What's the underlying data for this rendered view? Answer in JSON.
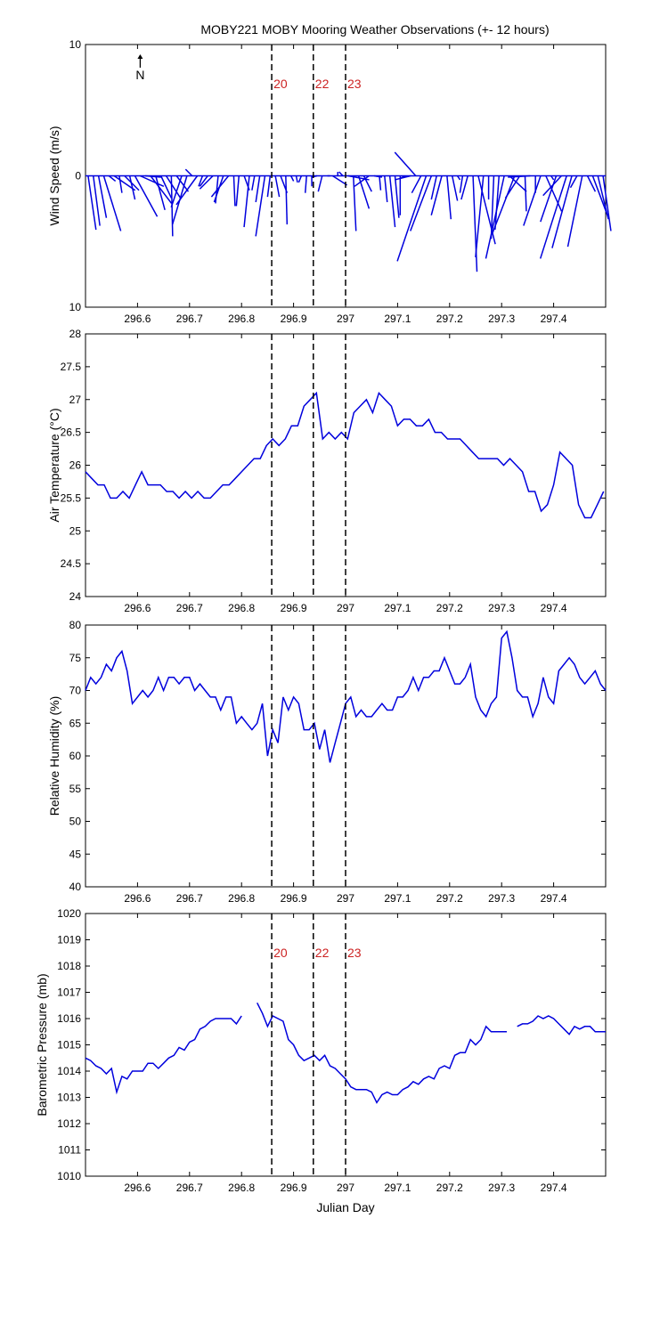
{
  "figure": {
    "title": "MOBY221 MOBY Mooring Weather Observations (+- 12 hours)",
    "xlabel": "Julian Day",
    "x_range": [
      296.5,
      297.5
    ],
    "x_ticks": [
      296.6,
      296.7,
      296.8,
      296.9,
      297,
      297.1,
      297.2,
      297.3,
      297.4
    ],
    "markers": [
      {
        "x": 296.858,
        "label": "20"
      },
      {
        "x": 296.938,
        "label": "22"
      },
      {
        "x": 297.0,
        "label": "23"
      }
    ],
    "colors": {
      "series": "#0000dd",
      "marker_label": "#cc2222",
      "axis": "#000000"
    }
  },
  "chart_data": [
    {
      "type": "quiver",
      "ylabel": "Wind Speed (m/s)",
      "ylim": [
        -10,
        10
      ],
      "y_tick_labels": [
        "10",
        "0",
        "10"
      ],
      "north_label": "N",
      "show_marker_labels": true,
      "x": [
        296.505,
        296.515,
        296.525,
        296.535,
        296.545,
        296.555,
        296.565,
        296.575,
        296.585,
        296.595,
        296.605,
        296.615,
        296.625,
        296.635,
        296.645,
        296.655,
        296.665,
        296.675,
        296.685,
        296.695,
        296.705,
        296.715,
        296.725,
        296.735,
        296.745,
        296.755,
        296.765,
        296.775,
        296.785,
        296.795,
        296.805,
        296.815,
        296.825,
        296.835,
        296.845,
        296.855,
        296.865,
        296.875,
        296.885,
        296.895,
        296.905,
        296.915,
        296.925,
        296.935,
        296.945,
        296.955,
        296.965,
        296.975,
        296.985,
        296.995,
        297.005,
        297.015,
        297.025,
        297.035,
        297.045,
        297.055,
        297.065,
        297.075,
        297.085,
        297.095,
        297.105,
        297.115,
        297.125,
        297.135,
        297.145,
        297.155,
        297.165,
        297.175,
        297.185,
        297.195,
        297.205,
        297.215,
        297.225,
        297.235,
        297.245,
        297.255,
        297.265,
        297.275,
        297.285,
        297.295,
        297.305,
        297.315,
        297.325,
        297.335,
        297.345,
        297.355,
        297.365,
        297.375,
        297.385,
        297.395,
        297.405,
        297.415,
        297.425,
        297.435,
        297.445,
        297.455,
        297.465,
        297.475,
        297.485,
        297.495
      ],
      "u": [
        0.6,
        0.5,
        0.6,
        1.3,
        0.5,
        1.6,
        0.2,
        1.1,
        0.4,
        1.7,
        1.8,
        1.2,
        1.6,
        0.7,
        0.8,
        1.1,
        0.1,
        0.9,
        -0.8,
        -1.1,
        -0.5,
        -1.6,
        -0.3,
        -0.6,
        -1.0,
        -0.2,
        -0.7,
        -1.3,
        0.1,
        -0.2,
        0.4,
        -0.4,
        -0.2,
        -0.3,
        -0.7,
        -0.2,
        0.3,
        0.5,
        0.1,
        0.2,
        0.1,
        -0.2,
        -0.1,
        0.0,
        -0.4,
        -0.3,
        0.2,
        1.1,
        0.0,
        -0.3,
        1.6,
        0.2,
        0.8,
        0.6,
        -1.1,
        0.6,
        0.1,
        0.2,
        0.4,
        0.3,
        0.0,
        -0.4,
        -1.2,
        -1.6,
        -0.7,
        -2.2,
        -1.6,
        -0.4,
        -0.8,
        0.3,
        0.4,
        0.2,
        -0.2,
        -0.5,
        0.3,
        1.3,
        -0.6,
        0.0,
        -0.2,
        -0.3,
        -1.4,
        1.3,
        -1.7,
        -1.1,
        0.1,
        -1.7,
        0.0,
        -1.3,
        1.2,
        0.2,
        -1.2,
        -1.4,
        -2.0,
        -1.5,
        -0.5,
        -1.1,
        0.6,
        1.2,
        0.8,
        0.6
      ],
      "v": [
        -4.1,
        -3.8,
        -3.2,
        -4.2,
        -0.4,
        -1.1,
        -1.3,
        -1.1,
        -1.8,
        -3.1,
        -0.8,
        -0.1,
        -2.1,
        -2.6,
        -1.7,
        -1.7,
        -4.6,
        -1.2,
        -2.4,
        -3.7,
        0.5,
        -2.2,
        -0.8,
        -0.8,
        -1.0,
        -2.1,
        -2.0,
        -1.6,
        -2.3,
        -2.3,
        -1.1,
        -3.9,
        -1.1,
        -2.0,
        -4.6,
        -1.6,
        -1.6,
        -1.3,
        -3.7,
        -0.4,
        -0.5,
        -0.5,
        -1.3,
        -0.8,
        -0.1,
        -1.2,
        0.0,
        -0.7,
        0.3,
        0.3,
        -0.3,
        -4.2,
        -2.5,
        -1.2,
        -0.8,
        -0.1,
        -1.1,
        -2.0,
        -3.9,
        -3.2,
        -3.0,
        -0.2,
        -0.3,
        1.8,
        -1.3,
        -6.5,
        -4.2,
        -1.8,
        -3.0,
        -3.3,
        -1.9,
        -0.3,
        -1.3,
        -1.8,
        -7.3,
        -5.2,
        -6.2,
        -1.8,
        -4.8,
        -4.1,
        -6.3,
        -1.2,
        -4.4,
        -1.7,
        -2.7,
        -0.1,
        -1.3,
        -3.8,
        -2.7,
        -0.3,
        -3.5,
        -1.5,
        -6.3,
        -5.5,
        -0.9,
        -5.4,
        -1.2,
        -3.2,
        -3.3,
        -4.2
      ]
    },
    {
      "type": "line",
      "ylabel": "Air Temperature (°C)",
      "ylim": [
        24,
        28
      ],
      "y_ticks": [
        24,
        24.5,
        25,
        25.5,
        26,
        26.5,
        27,
        27.5,
        28
      ],
      "y_tick_labels": [
        "24",
        "24.5",
        "25",
        "25.5",
        "26",
        "26.5",
        "27",
        "27.5",
        "28"
      ],
      "show_marker_labels": false,
      "x": [
        296.5,
        296.512,
        296.524,
        296.536,
        296.548,
        296.56,
        296.572,
        296.584,
        296.596,
        296.608,
        296.62,
        296.632,
        296.644,
        296.656,
        296.668,
        296.68,
        296.692,
        296.704,
        296.716,
        296.728,
        296.74,
        296.752,
        296.764,
        296.776,
        296.788,
        296.8,
        296.812,
        296.824,
        296.836,
        296.848,
        296.86,
        296.872,
        296.884,
        296.896,
        296.908,
        296.92,
        296.932,
        296.944,
        296.956,
        296.968,
        296.98,
        296.992,
        297.004,
        297.016,
        297.028,
        297.04,
        297.052,
        297.064,
        297.076,
        297.088,
        297.1,
        297.112,
        297.124,
        297.136,
        297.148,
        297.16,
        297.172,
        297.184,
        297.196,
        297.208,
        297.22,
        297.232,
        297.244,
        297.256,
        297.268,
        297.28,
        297.292,
        297.304,
        297.316,
        297.328,
        297.34,
        297.352,
        297.364,
        297.376,
        297.388,
        297.4,
        297.412,
        297.424,
        297.436,
        297.448,
        297.46,
        297.472,
        297.484,
        297.496
      ],
      "y": [
        25.9,
        25.8,
        25.7,
        25.7,
        25.5,
        25.5,
        25.6,
        25.5,
        25.7,
        25.9,
        25.7,
        25.7,
        25.7,
        25.6,
        25.6,
        25.5,
        25.6,
        25.5,
        25.6,
        25.5,
        25.5,
        25.6,
        25.7,
        25.7,
        25.8,
        25.9,
        26.0,
        26.1,
        26.1,
        26.3,
        26.4,
        26.3,
        26.4,
        26.6,
        26.6,
        26.9,
        27.0,
        27.1,
        26.4,
        26.5,
        26.4,
        26.5,
        26.4,
        26.8,
        26.9,
        27.0,
        26.8,
        27.1,
        27.0,
        26.9,
        26.6,
        26.7,
        26.7,
        26.6,
        26.6,
        26.7,
        26.5,
        26.5,
        26.4,
        26.4,
        26.4,
        26.3,
        26.2,
        26.1,
        26.1,
        26.1,
        26.1,
        26.0,
        26.1,
        26.0,
        25.9,
        25.6,
        25.6,
        25.3,
        25.4,
        25.7,
        26.2,
        26.1,
        26.0,
        25.4,
        25.2,
        25.2,
        25.4,
        25.6
      ]
    },
    {
      "type": "line",
      "ylabel": "Relative Humidity (%)",
      "ylim": [
        40,
        80
      ],
      "y_ticks": [
        40,
        45,
        50,
        55,
        60,
        65,
        70,
        75,
        80
      ],
      "y_tick_labels": [
        "40",
        "45",
        "50",
        "55",
        "60",
        "65",
        "70",
        "75",
        "80"
      ],
      "show_marker_labels": false,
      "x": [
        296.5,
        296.51,
        296.52,
        296.53,
        296.54,
        296.55,
        296.56,
        296.57,
        296.58,
        296.59,
        296.6,
        296.61,
        296.62,
        296.63,
        296.64,
        296.65,
        296.66,
        296.67,
        296.68,
        296.69,
        296.7,
        296.71,
        296.72,
        296.73,
        296.74,
        296.75,
        296.76,
        296.77,
        296.78,
        296.79,
        296.8,
        296.81,
        296.82,
        296.83,
        296.84,
        296.85,
        296.86,
        296.87,
        296.88,
        296.89,
        296.9,
        296.91,
        296.92,
        296.93,
        296.94,
        296.95,
        296.96,
        296.97,
        296.98,
        296.99,
        297.0,
        297.01,
        297.02,
        297.03,
        297.04,
        297.05,
        297.06,
        297.07,
        297.08,
        297.09,
        297.1,
        297.11,
        297.12,
        297.13,
        297.14,
        297.15,
        297.16,
        297.17,
        297.18,
        297.19,
        297.2,
        297.21,
        297.22,
        297.23,
        297.24,
        297.25,
        297.26,
        297.27,
        297.28,
        297.29,
        297.3,
        297.31,
        297.32,
        297.33,
        297.34,
        297.35,
        297.36,
        297.37,
        297.38,
        297.39,
        297.4,
        297.41,
        297.42,
        297.43,
        297.44,
        297.45,
        297.46,
        297.47,
        297.48,
        297.49,
        297.5
      ],
      "y": [
        70,
        72,
        71,
        72,
        74,
        73,
        75,
        76,
        73,
        68,
        69,
        70,
        69,
        70,
        72,
        70,
        72,
        72,
        71,
        72,
        72,
        70,
        71,
        70,
        69,
        69,
        67,
        69,
        69,
        65,
        66,
        65,
        64,
        65,
        68,
        60,
        64,
        62,
        69,
        67,
        69,
        68,
        64,
        64,
        65,
        61,
        64,
        59,
        62,
        65,
        68,
        69,
        66,
        67,
        66,
        66,
        67,
        68,
        67,
        67,
        69,
        69,
        70,
        72,
        70,
        72,
        72,
        73,
        73,
        75,
        73,
        71,
        71,
        72,
        74,
        69,
        67,
        66,
        68,
        69,
        78,
        79,
        75,
        70,
        69,
        69,
        66,
        68,
        72,
        69,
        68,
        73,
        74,
        75,
        74,
        72,
        71,
        72,
        73,
        71,
        70
      ]
    },
    {
      "type": "line",
      "ylabel": "Barometric Pressure (mb)",
      "ylim": [
        1010,
        1020
      ],
      "y_ticks": [
        1010,
        1011,
        1012,
        1013,
        1014,
        1015,
        1016,
        1017,
        1018,
        1019,
        1020
      ],
      "y_tick_labels": [
        "1010",
        "1011",
        "1012",
        "1013",
        "1014",
        "1015",
        "1016",
        "1017",
        "1018",
        "1019",
        "1020"
      ],
      "show_marker_labels": true,
      "segments": [
        {
          "x": [
            296.5,
            296.51,
            296.52,
            296.53,
            296.54,
            296.55,
            296.56,
            296.57,
            296.58,
            296.59,
            296.6,
            296.61,
            296.62,
            296.63,
            296.64,
            296.65,
            296.66,
            296.67,
            296.68,
            296.69,
            296.7,
            296.71,
            296.72,
            296.73,
            296.74,
            296.75,
            296.76,
            296.77,
            296.78,
            296.79,
            296.8
          ],
          "y": [
            1014.5,
            1014.4,
            1014.2,
            1014.1,
            1013.9,
            1014.1,
            1013.2,
            1013.8,
            1013.7,
            1014.0,
            1014.0,
            1014.0,
            1014.3,
            1014.3,
            1014.1,
            1014.3,
            1014.5,
            1014.6,
            1014.9,
            1014.8,
            1015.1,
            1015.2,
            1015.6,
            1015.7,
            1015.9,
            1016.0,
            1016.0,
            1016.0,
            1016.0,
            1015.8,
            1016.1
          ]
        },
        {
          "x": [
            296.83,
            296.84,
            296.85,
            296.86,
            296.87,
            296.88,
            296.89,
            296.9,
            296.91,
            296.92,
            296.93,
            296.94,
            296.95,
            296.96,
            296.97,
            296.98,
            296.99,
            297.0,
            297.01,
            297.02,
            297.03,
            297.04,
            297.05,
            297.06,
            297.07,
            297.08,
            297.09,
            297.1,
            297.11,
            297.12,
            297.13,
            297.14,
            297.15,
            297.16,
            297.17,
            297.18,
            297.19,
            297.2,
            297.21,
            297.22,
            297.23,
            297.24,
            297.25,
            297.26,
            297.27,
            297.28,
            297.29,
            297.3,
            297.31
          ],
          "y": [
            1016.6,
            1016.2,
            1015.7,
            1016.1,
            1016.0,
            1015.9,
            1015.2,
            1015.0,
            1014.6,
            1014.4,
            1014.5,
            1014.6,
            1014.4,
            1014.6,
            1014.2,
            1014.1,
            1013.9,
            1013.7,
            1013.4,
            1013.3,
            1013.3,
            1013.3,
            1013.2,
            1012.8,
            1013.1,
            1013.2,
            1013.1,
            1013.1,
            1013.3,
            1013.4,
            1013.6,
            1013.5,
            1013.7,
            1013.8,
            1013.7,
            1014.1,
            1014.2,
            1014.1,
            1014.6,
            1014.7,
            1014.7,
            1015.2,
            1015.0,
            1015.2,
            1015.7,
            1015.5,
            1015.5,
            1015.5,
            1015.5
          ]
        },
        {
          "x": [
            297.33,
            297.34,
            297.35,
            297.36,
            297.37,
            297.38,
            297.39,
            297.4,
            297.41,
            297.42,
            297.43,
            297.44,
            297.45,
            297.46,
            297.47,
            297.48,
            297.49,
            297.5
          ],
          "y": [
            1015.7,
            1015.8,
            1015.8,
            1015.9,
            1016.1,
            1016.0,
            1016.1,
            1016.0,
            1015.8,
            1015.6,
            1015.4,
            1015.7,
            1015.6,
            1015.7,
            1015.7,
            1015.5,
            1015.5,
            1015.5
          ]
        }
      ]
    }
  ]
}
